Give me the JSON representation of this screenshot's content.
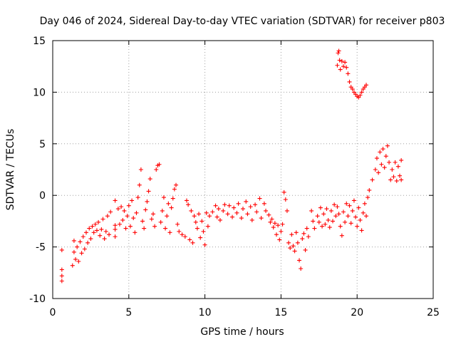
{
  "chart_data": {
    "type": "scatter",
    "title": "Day 046 of 2024, Sidereal Day-to-day VTEC variation (SDTVAR) for receiver p803",
    "xlabel": "GPS time / hours",
    "ylabel": "SDTVAR / TECUs",
    "xlim": [
      0,
      25
    ],
    "ylim": [
      -10,
      15
    ],
    "grid": true,
    "marker": "+",
    "marker_color": "#ff0000",
    "xticks": [
      "0",
      "5",
      "10",
      "15",
      "20",
      "25"
    ],
    "yticks": [
      "-10",
      "-5",
      "0",
      "5",
      "10",
      "15"
    ],
    "series": [
      {
        "name": "SDTVAR",
        "points": [
          [
            0.6,
            -5.3
          ],
          [
            0.6,
            -7.2
          ],
          [
            0.6,
            -7.8
          ],
          [
            0.6,
            -8.3
          ],
          [
            1.3,
            -6.8
          ],
          [
            1.4,
            -5.5
          ],
          [
            1.4,
            -4.4
          ],
          [
            1.5,
            -6.2
          ],
          [
            1.6,
            -5.0
          ],
          [
            1.7,
            -6.4
          ],
          [
            1.8,
            -4.5
          ],
          [
            1.9,
            -5.6
          ],
          [
            2.0,
            -4.0
          ],
          [
            2.1,
            -5.2
          ],
          [
            2.2,
            -3.6
          ],
          [
            2.3,
            -4.6
          ],
          [
            2.4,
            -3.2
          ],
          [
            2.5,
            -4.2
          ],
          [
            2.6,
            -3.0
          ],
          [
            2.7,
            -3.6
          ],
          [
            2.8,
            -2.8
          ],
          [
            2.9,
            -3.4
          ],
          [
            3.0,
            -2.6
          ],
          [
            3.1,
            -3.9
          ],
          [
            3.2,
            -3.3
          ],
          [
            3.3,
            -2.3
          ],
          [
            3.4,
            -4.2
          ],
          [
            3.5,
            -3.5
          ],
          [
            3.6,
            -2.0
          ],
          [
            3.7,
            -3.8
          ],
          [
            3.8,
            -1.6
          ],
          [
            4.1,
            -0.5
          ],
          [
            4.1,
            -2.9
          ],
          [
            4.1,
            -3.3
          ],
          [
            4.1,
            -4.0
          ],
          [
            4.3,
            -1.3
          ],
          [
            4.4,
            -2.8
          ],
          [
            4.5,
            -1.1
          ],
          [
            4.6,
            -2.4
          ],
          [
            4.7,
            -1.5
          ],
          [
            4.8,
            -3.2
          ],
          [
            4.9,
            -2.0
          ],
          [
            5.0,
            -1.0
          ],
          [
            5.1,
            -3.0
          ],
          [
            5.2,
            -0.5
          ],
          [
            5.3,
            -2.2
          ],
          [
            5.4,
            -3.6
          ],
          [
            5.5,
            -1.7
          ],
          [
            5.6,
            -0.2
          ],
          [
            5.7,
            1.0
          ],
          [
            5.8,
            2.5
          ],
          [
            5.9,
            -2.5
          ],
          [
            6.0,
            -3.2
          ],
          [
            6.1,
            -1.4
          ],
          [
            6.2,
            -0.6
          ],
          [
            6.3,
            0.4
          ],
          [
            6.4,
            1.6
          ],
          [
            6.5,
            -2.3
          ],
          [
            6.6,
            -1.8
          ],
          [
            6.7,
            -3.0
          ],
          [
            6.8,
            2.5
          ],
          [
            6.9,
            2.9
          ],
          [
            7.0,
            3.0
          ],
          [
            7.1,
            -2.6
          ],
          [
            7.2,
            -1.5
          ],
          [
            7.3,
            -0.2
          ],
          [
            7.4,
            -3.2
          ],
          [
            7.5,
            -2.0
          ],
          [
            7.6,
            -0.8
          ],
          [
            7.7,
            -3.6
          ],
          [
            7.8,
            -1.2
          ],
          [
            7.9,
            -0.3
          ],
          [
            8.0,
            0.6
          ],
          [
            8.1,
            1.0
          ],
          [
            8.2,
            -2.8
          ],
          [
            8.3,
            -3.5
          ],
          [
            8.5,
            -3.8
          ],
          [
            8.7,
            -4.0
          ],
          [
            8.8,
            -0.5
          ],
          [
            8.9,
            -0.9
          ],
          [
            9.0,
            -4.3
          ],
          [
            9.1,
            -1.5
          ],
          [
            9.2,
            -4.6
          ],
          [
            9.3,
            -2.0
          ],
          [
            9.4,
            -2.6
          ],
          [
            9.5,
            -3.2
          ],
          [
            9.6,
            -1.8
          ],
          [
            9.7,
            -4.1
          ],
          [
            9.8,
            -2.5
          ],
          [
            9.9,
            -3.5
          ],
          [
            10.0,
            -4.8
          ],
          [
            10.1,
            -1.7
          ],
          [
            10.2,
            -3.0
          ],
          [
            10.3,
            -2.0
          ],
          [
            10.5,
            -1.6
          ],
          [
            10.7,
            -1.0
          ],
          [
            10.8,
            -2.1
          ],
          [
            10.9,
            -1.3
          ],
          [
            11.0,
            -2.4
          ],
          [
            11.2,
            -1.5
          ],
          [
            11.3,
            -0.9
          ],
          [
            11.5,
            -1.8
          ],
          [
            11.6,
            -1.0
          ],
          [
            11.8,
            -2.1
          ],
          [
            11.9,
            -1.2
          ],
          [
            12.1,
            -1.7
          ],
          [
            12.2,
            -0.8
          ],
          [
            12.4,
            -2.2
          ],
          [
            12.5,
            -1.3
          ],
          [
            12.7,
            -0.6
          ],
          [
            12.8,
            -1.8
          ],
          [
            13.0,
            -1.1
          ],
          [
            13.1,
            -2.4
          ],
          [
            13.3,
            -0.9
          ],
          [
            13.4,
            -1.6
          ],
          [
            13.6,
            -0.3
          ],
          [
            13.7,
            -2.2
          ],
          [
            13.9,
            -0.8
          ],
          [
            14.0,
            -1.5
          ],
          [
            14.2,
            -1.9
          ],
          [
            14.3,
            -2.6
          ],
          [
            14.4,
            -2.3
          ],
          [
            14.5,
            -3.1
          ],
          [
            14.6,
            -2.7
          ],
          [
            14.7,
            -3.8
          ],
          [
            14.8,
            -2.9
          ],
          [
            14.9,
            -4.3
          ],
          [
            15.0,
            -3.5
          ],
          [
            15.1,
            -2.8
          ],
          [
            15.2,
            0.3
          ],
          [
            15.3,
            -0.4
          ],
          [
            15.4,
            -1.5
          ],
          [
            15.5,
            -4.6
          ],
          [
            15.6,
            -5.1
          ],
          [
            15.7,
            -3.8
          ],
          [
            15.8,
            -4.9
          ],
          [
            15.9,
            -5.4
          ],
          [
            16.0,
            -3.6
          ],
          [
            16.1,
            -4.6
          ],
          [
            16.2,
            -6.3
          ],
          [
            16.3,
            -7.1
          ],
          [
            16.4,
            -4.2
          ],
          [
            16.5,
            -3.7
          ],
          [
            16.6,
            -5.3
          ],
          [
            16.7,
            -3.2
          ],
          [
            16.8,
            -4.0
          ],
          [
            17.0,
            -1.5
          ],
          [
            17.1,
            -2.5
          ],
          [
            17.2,
            -3.2
          ],
          [
            17.4,
            -2.0
          ],
          [
            17.5,
            -2.6
          ],
          [
            17.6,
            -1.2
          ],
          [
            17.7,
            -3.0
          ],
          [
            17.8,
            -1.8
          ],
          [
            17.9,
            -2.8
          ],
          [
            18.0,
            -1.3
          ],
          [
            18.1,
            -2.4
          ],
          [
            18.2,
            -3.1
          ],
          [
            18.3,
            -1.5
          ],
          [
            18.4,
            -2.5
          ],
          [
            18.5,
            -0.9
          ],
          [
            18.6,
            -2.0
          ],
          [
            18.7,
            -1.1
          ],
          [
            18.8,
            -1.8
          ],
          [
            18.9,
            -3.0
          ],
          [
            19.0,
            -3.9
          ],
          [
            19.1,
            -1.6
          ],
          [
            19.2,
            -2.6
          ],
          [
            19.3,
            -0.8
          ],
          [
            19.4,
            -2.0
          ],
          [
            19.5,
            -1.0
          ],
          [
            19.6,
            -2.7
          ],
          [
            19.7,
            -1.5
          ],
          [
            19.8,
            -0.5
          ],
          [
            19.9,
            -2.1
          ],
          [
            20.0,
            -3.0
          ],
          [
            20.1,
            -1.2
          ],
          [
            20.2,
            -2.4
          ],
          [
            20.3,
            -3.4
          ],
          [
            20.4,
            -1.7
          ],
          [
            20.5,
            -0.8
          ],
          [
            20.6,
            -2.0
          ],
          [
            20.7,
            -0.2
          ],
          [
            20.8,
            0.5
          ],
          [
            21.0,
            1.5
          ],
          [
            21.2,
            2.5
          ],
          [
            21.3,
            3.6
          ],
          [
            21.4,
            2.2
          ],
          [
            21.5,
            4.2
          ],
          [
            21.6,
            3.0
          ],
          [
            21.7,
            4.5
          ],
          [
            21.8,
            2.7
          ],
          [
            21.9,
            3.8
          ],
          [
            22.0,
            4.8
          ],
          [
            22.1,
            3.2
          ],
          [
            22.2,
            1.5
          ],
          [
            22.3,
            2.5
          ],
          [
            22.4,
            1.8
          ],
          [
            22.5,
            3.2
          ],
          [
            22.6,
            1.4
          ],
          [
            22.7,
            2.8
          ],
          [
            22.8,
            1.9
          ],
          [
            22.9,
            3.4
          ],
          [
            22.9,
            1.5
          ],
          [
            18.7,
            12.6
          ],
          [
            18.75,
            13.8
          ],
          [
            18.8,
            14.0
          ],
          [
            18.85,
            13.1
          ],
          [
            18.9,
            12.2
          ],
          [
            19.0,
            13.0
          ],
          [
            19.1,
            12.5
          ],
          [
            19.2,
            12.9
          ],
          [
            19.3,
            12.4
          ],
          [
            19.4,
            11.8
          ],
          [
            19.5,
            11.0
          ],
          [
            19.6,
            10.5
          ],
          [
            19.7,
            10.3
          ],
          [
            19.8,
            10.0
          ],
          [
            19.9,
            9.8
          ],
          [
            20.0,
            9.6
          ],
          [
            20.1,
            9.5
          ],
          [
            20.2,
            9.7
          ],
          [
            20.3,
            10.0
          ],
          [
            20.4,
            10.3
          ],
          [
            20.5,
            10.5
          ],
          [
            20.6,
            10.7
          ]
        ]
      }
    ]
  }
}
